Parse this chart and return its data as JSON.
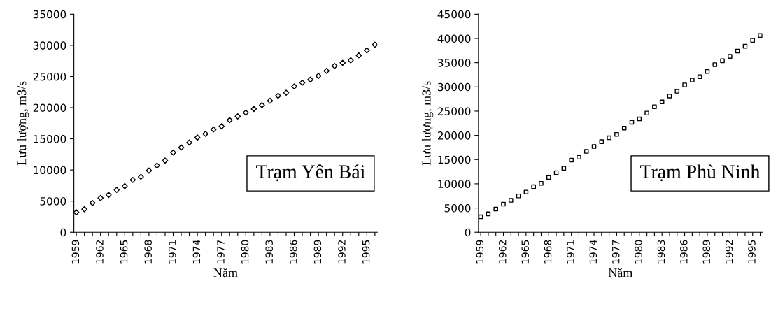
{
  "chart_data": [
    {
      "type": "scatter",
      "xlabel": "Năm",
      "ylabel": "Lưu lượng, m3/s",
      "marker": "diamond",
      "grid": false,
      "legend": false,
      "categories": [
        "1959",
        null,
        null,
        "1962",
        null,
        null,
        "1965",
        null,
        null,
        "1968",
        null,
        null,
        "1971",
        null,
        null,
        "1974",
        null,
        null,
        "1977",
        null,
        null,
        "1980",
        null,
        null,
        "1983",
        null,
        null,
        "1986",
        null,
        null,
        "1989",
        null,
        null,
        "1992",
        null,
        null,
        "1995",
        null
      ],
      "ylim": [
        0,
        35000
      ],
      "yticks": [
        0,
        5000,
        10000,
        15000,
        20000,
        25000,
        30000,
        35000
      ],
      "series": [
        {
          "color": "#000000",
          "values": [
            3200,
            3700,
            4700,
            5500,
            6000,
            6800,
            7400,
            8400,
            8900,
            9900,
            10700,
            11500,
            12800,
            13600,
            14400,
            15200,
            15800,
            16500,
            17000,
            18000,
            18600,
            19200,
            19800,
            20400,
            21100,
            21900,
            22400,
            23400,
            24000,
            24500,
            25100,
            25900,
            26700,
            27200,
            27600,
            28400,
            29200,
            30100
          ]
        }
      ],
      "annotations": [
        "Trạm Yên Bái"
      ]
    },
    {
      "type": "scatter",
      "xlabel": "Năm",
      "ylabel": "Lưu lượng, m3/s",
      "marker": "square",
      "grid": false,
      "legend": false,
      "categories": [
        "1959",
        null,
        null,
        "1962",
        null,
        null,
        "1965",
        null,
        null,
        "1968",
        null,
        null,
        "1971",
        null,
        null,
        "1974",
        null,
        null,
        "1977",
        null,
        null,
        "1980",
        null,
        null,
        "1983",
        null,
        null,
        "1986",
        null,
        null,
        "1989",
        null,
        null,
        "1992",
        null,
        null,
        "1995",
        null
      ],
      "ylim": [
        0,
        45000
      ],
      "yticks": [
        0,
        5000,
        10000,
        15000,
        20000,
        25000,
        30000,
        35000,
        40000,
        45000
      ],
      "series": [
        {
          "color": "#000000",
          "values": [
            3200,
            3800,
            4800,
            5800,
            6600,
            7500,
            8300,
            9400,
            10100,
            11300,
            12300,
            13200,
            14900,
            15500,
            16700,
            17700,
            18700,
            19500,
            20200,
            21500,
            22700,
            23400,
            24600,
            25900,
            26900,
            28100,
            29100,
            30400,
            31400,
            32100,
            33200,
            34600,
            35400,
            36300,
            37400,
            38400,
            39600,
            40600
          ]
        }
      ],
      "annotations": [
        "Trạm Phù Ninh"
      ]
    }
  ]
}
